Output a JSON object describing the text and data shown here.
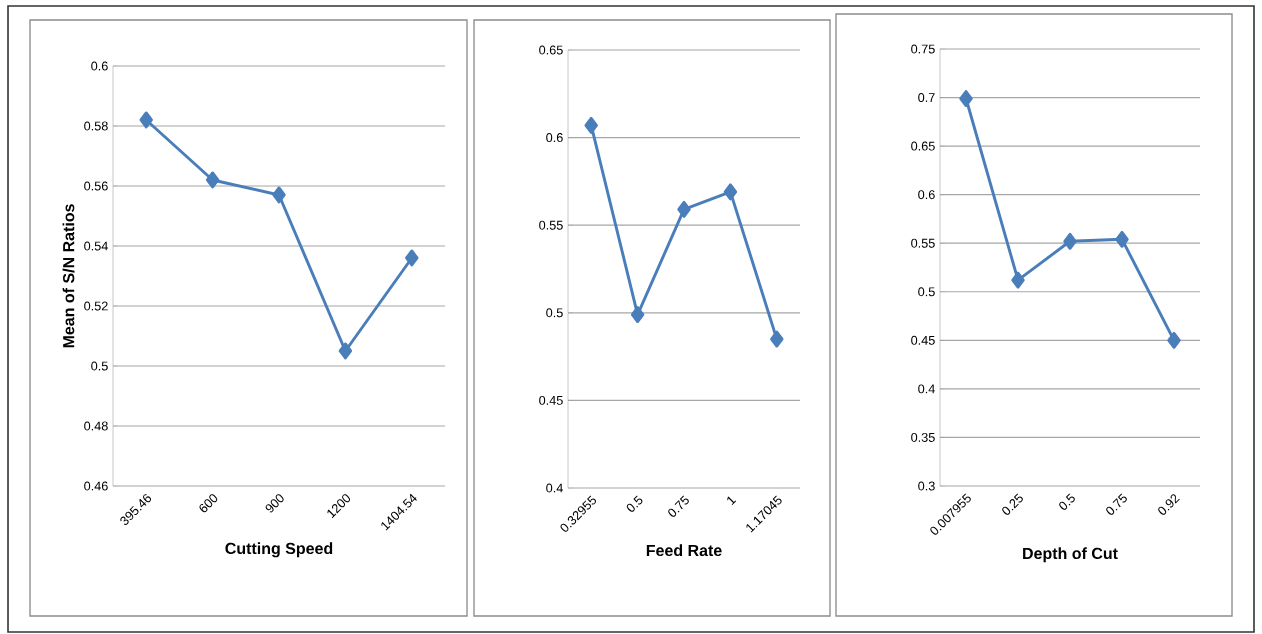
{
  "chart_data": [
    {
      "type": "line",
      "xlabel": "Cutting Speed",
      "ylabel": "Mean of S/N Ratios",
      "categories": [
        "395.46",
        "600",
        "900",
        "1200",
        "1404.54"
      ],
      "series": [
        {
          "color": "#4a7ebb",
          "values": [
            0.582,
            0.562,
            0.557,
            0.505,
            0.536
          ]
        }
      ],
      "ylim": [
        0.46,
        0.6
      ],
      "yticks": [
        0.46,
        0.48,
        0.5,
        0.52,
        0.54,
        0.56,
        0.58,
        0.6
      ],
      "grid": "y",
      "marker": "diamond",
      "line_style": "solid"
    },
    {
      "type": "line",
      "xlabel": "Feed Rate",
      "categories": [
        "0.32955",
        "0.5",
        "0.75",
        "1",
        "1.17045"
      ],
      "series": [
        {
          "color": "#4a7ebb",
          "values": [
            0.607,
            0.499,
            0.559,
            0.569,
            0.485
          ]
        }
      ],
      "ylim": [
        0.4,
        0.65
      ],
      "yticks": [
        0.4,
        0.45,
        0.5,
        0.55,
        0.6,
        0.65
      ],
      "grid": "y",
      "marker": "diamond",
      "line_style": "solid"
    },
    {
      "type": "line",
      "xlabel": "Depth of Cut",
      "categories": [
        "0.007955",
        "0.25",
        "0.5",
        "0.75",
        "0.92"
      ],
      "series": [
        {
          "color": "#4a7ebb",
          "values": [
            0.699,
            0.512,
            0.552,
            0.554,
            0.45
          ]
        }
      ],
      "ylim": [
        0.3,
        0.75
      ],
      "yticks": [
        0.3,
        0.35,
        0.4,
        0.45,
        0.5,
        0.55,
        0.6,
        0.65,
        0.7,
        0.75
      ],
      "grid": "y",
      "marker": "diamond",
      "line_style": "solid"
    }
  ]
}
